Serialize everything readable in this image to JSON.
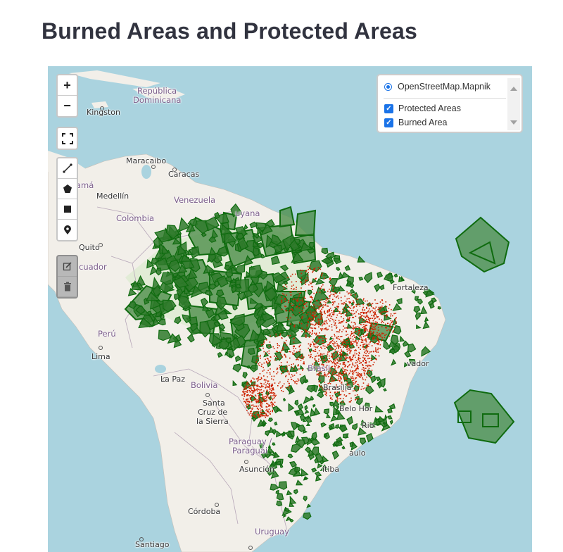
{
  "title": "Burned Areas and Protected Areas",
  "layer_control": {
    "base_layer": "OpenStreetMap.Mapnik",
    "overlays": [
      {
        "label": "Protected Areas",
        "checked": true
      },
      {
        "label": "Burned Area",
        "checked": true
      }
    ]
  },
  "map_controls": {
    "zoom_in": "+",
    "zoom_out": "−",
    "icons": [
      "fullscreen-icon",
      "draw-polyline-icon",
      "draw-polygon-icon",
      "draw-rectangle-icon",
      "draw-marker-icon",
      "edit-layers-icon",
      "delete-layers-icon"
    ]
  },
  "places": {
    "republica": "República",
    "dominicana": "Dominicana",
    "kingston": "Kingston",
    "maracaibo": "Maracaibo",
    "caracas": "Caracas",
    "panama": "amá",
    "medellin": "Medellín",
    "venezuela": "Venezuela",
    "guyana": "uyana",
    "colombia": "Colombia",
    "quito": "Quito",
    "ecuador": "cuador",
    "peru": "Perú",
    "lima": "Lima",
    "lapaz": "La Paz",
    "bolivia": "Bolivia",
    "santa1": "Santa",
    "santa2": "Cruz de",
    "santa3": "la Sierra",
    "brasil": "Brasil",
    "brasilia": "Brasília",
    "salvador": "vador",
    "fortaleza": "Fortaleza",
    "belo": "Belo Hor",
    "rio": "Rio",
    "saopaulo": "aulo",
    "curitiba": "itiba",
    "paraguay1": "Paraguay /",
    "paraguay2": "Paraguái",
    "asuncion": "Asunción",
    "cordoba": "Córdoba",
    "uruguay": "Uruguay",
    "santiago": "Santiago"
  },
  "colors": {
    "water": "#aad3df",
    "land": "#f2efe9",
    "forest": "#d6e9c6",
    "protected_fill": "#4e8f4a",
    "protected_stroke": "#0f6b0f",
    "burned": "#cc2200"
  }
}
